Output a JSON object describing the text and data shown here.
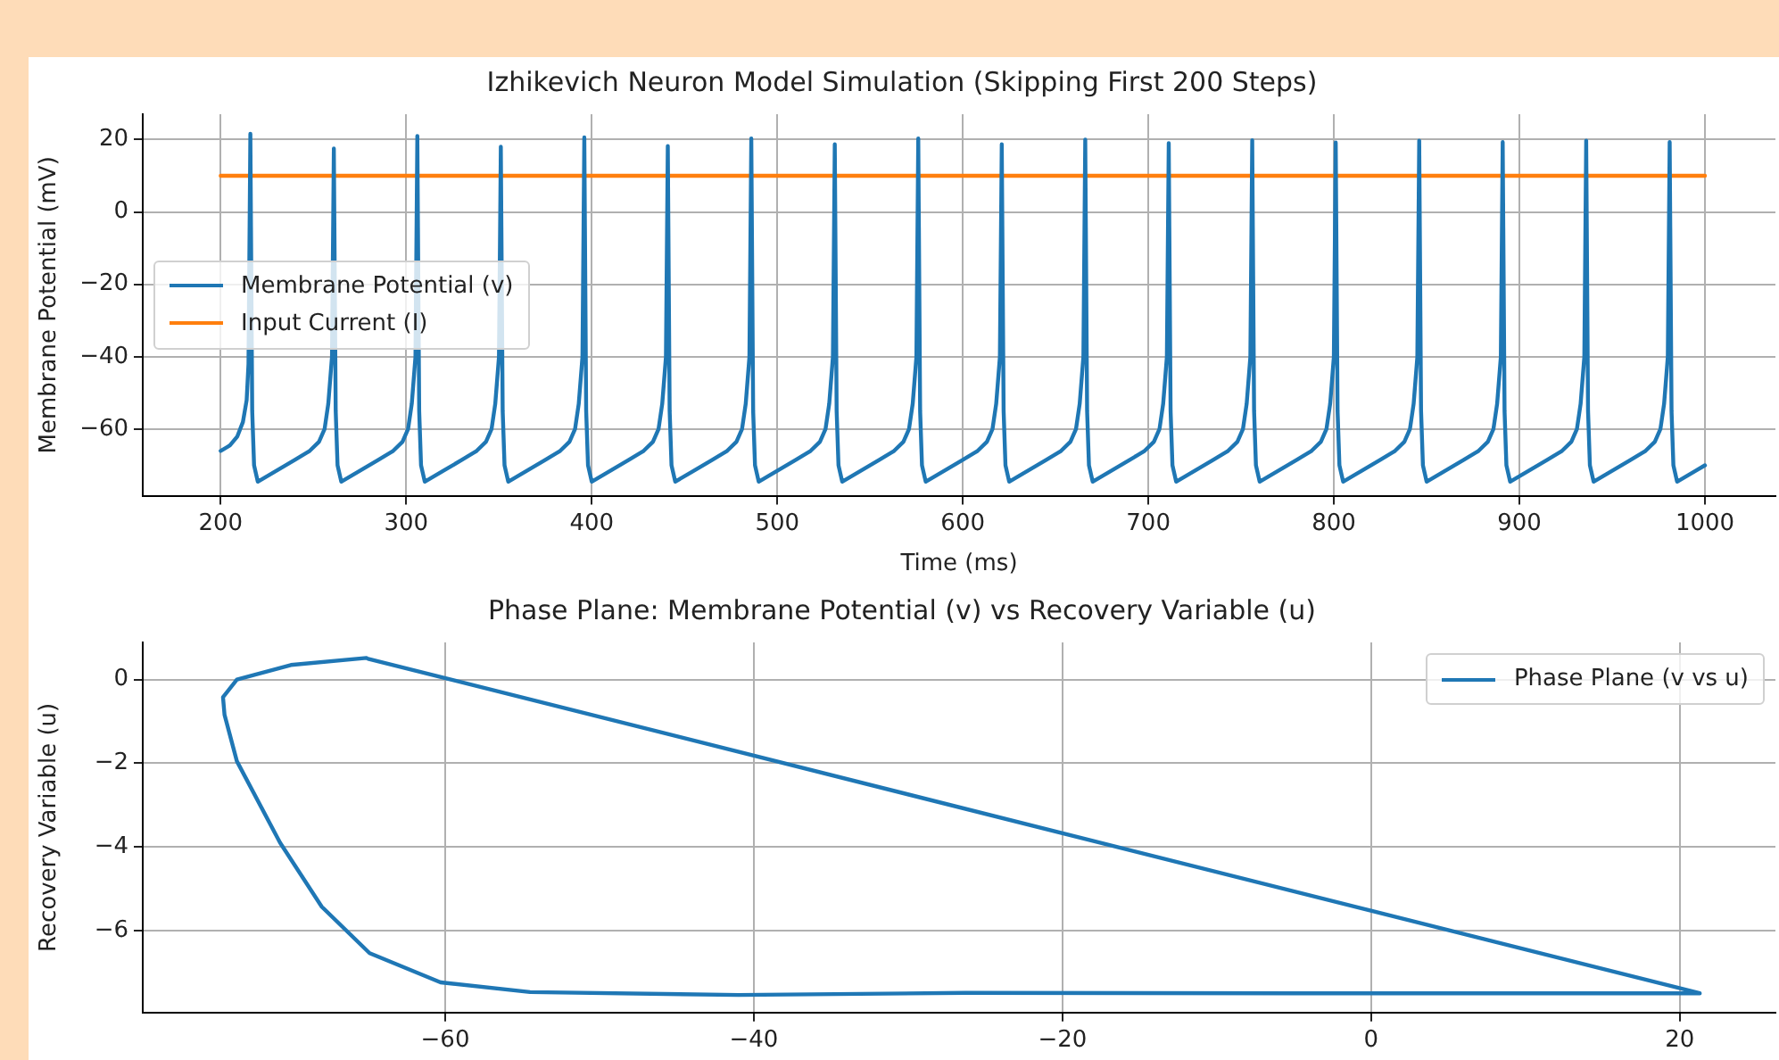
{
  "chart_data": [
    {
      "type": "line",
      "title": "Izhikevich Neuron Model Simulation (Skipping First 200 Steps)",
      "xlabel": "Time (ms)",
      "ylabel": "Membrane Potential (mV)",
      "xlim": [
        158,
        1038
      ],
      "ylim": [
        -78.4,
        27
      ],
      "xticks": [
        200,
        300,
        400,
        500,
        600,
        700,
        800,
        900,
        1000
      ],
      "yticks": [
        {
          "value": -60,
          "label": "−60"
        },
        {
          "value": -40,
          "label": "−40"
        },
        {
          "value": -20,
          "label": "−20"
        },
        {
          "value": 0,
          "label": "0"
        },
        20
      ],
      "grid": true,
      "legend": "center left",
      "series": [
        {
          "name": "Membrane Potential (v)",
          "color": "#1f77b4",
          "x": [
            200,
            205,
            209,
            212,
            214,
            215,
            216,
            217,
            218,
            220,
            230,
            240,
            248,
            253,
            256,
            258,
            260,
            261,
            262,
            263,
            265,
            275,
            285,
            293,
            298,
            301,
            303,
            305,
            306,
            307,
            308,
            310,
            320,
            330,
            338,
            343,
            346,
            348,
            350,
            351,
            352,
            353,
            355,
            365,
            375,
            383,
            388,
            391,
            393,
            395,
            396,
            397,
            398,
            400,
            410,
            420,
            428,
            433,
            436,
            438,
            440,
            441,
            442,
            443,
            445,
            455,
            465,
            473,
            478,
            481,
            483,
            485,
            486,
            487,
            488,
            490,
            500,
            510,
            518,
            523,
            526,
            528,
            530,
            531,
            532,
            533,
            535,
            545,
            555,
            563,
            568,
            571,
            573,
            575,
            576,
            577,
            578,
            580,
            590,
            600,
            608,
            613,
            616,
            618,
            620,
            621,
            622,
            623,
            625,
            635,
            645,
            653,
            658,
            661,
            663,
            665,
            666,
            667,
            668,
            670,
            680,
            690,
            698,
            703,
            706,
            708,
            710,
            711,
            712,
            713,
            715,
            725,
            735,
            743,
            748,
            751,
            753,
            755,
            756,
            757,
            758,
            760,
            770,
            780,
            788,
            793,
            796,
            798,
            800,
            801,
            802,
            803,
            805,
            815,
            825,
            833,
            838,
            841,
            843,
            845,
            846,
            847,
            848,
            850,
            860,
            870,
            878,
            883,
            886,
            888,
            890,
            891,
            892,
            893,
            895,
            905,
            915,
            923,
            928,
            931,
            933,
            935,
            936,
            937,
            938,
            940,
            950,
            960,
            968,
            973,
            976,
            978,
            980,
            981,
            982,
            983,
            985,
            995,
            1000
          ],
          "values": [
            -66,
            -64.5,
            -62,
            -58,
            -52,
            -42,
            21.6,
            -55,
            -70,
            -74.5,
            -71.5,
            -68.5,
            -66,
            -63.5,
            -60,
            -53,
            -40,
            17.5,
            -55,
            -70,
            -74.5,
            -71.5,
            -68.5,
            -66,
            -63.5,
            -60,
            -53,
            -40,
            21,
            -55,
            -70,
            -74.5,
            -71.5,
            -68.5,
            -66,
            -63.5,
            -60,
            -53,
            -40,
            18,
            -55,
            -70,
            -74.5,
            -71.5,
            -68.5,
            -66,
            -63.5,
            -60,
            -53,
            -40,
            20.6,
            -55,
            -70,
            -74.5,
            -71.5,
            -68.5,
            -66,
            -63.5,
            -60,
            -53,
            -40,
            18.2,
            -55,
            -70,
            -74.5,
            -71.5,
            -68.5,
            -66,
            -63.5,
            -60,
            -53,
            -40,
            20.3,
            -55,
            -70,
            -74.5,
            -71.5,
            -68.5,
            -66,
            -63.5,
            -60,
            -53,
            -40,
            18.7,
            -55,
            -70,
            -74.5,
            -71.5,
            -68.5,
            -66,
            -63.5,
            -60,
            -53,
            -40,
            20.3,
            -55,
            -70,
            -74.5,
            -71.5,
            -68.5,
            -66,
            -63.5,
            -60,
            -53,
            -40,
            18.7,
            -55,
            -70,
            -74.5,
            -71.5,
            -68.5,
            -66,
            -63.5,
            -60,
            -53,
            -40,
            20,
            -55,
            -70,
            -74.5,
            -71.5,
            -68.5,
            -66,
            -63.5,
            -60,
            -53,
            -40,
            19,
            -55,
            -70,
            -74.5,
            -71.5,
            -68.5,
            -66,
            -63.5,
            -60,
            -53,
            -40,
            19.8,
            -55,
            -70,
            -74.5,
            -71.5,
            -68.5,
            -66,
            -63.5,
            -60,
            -53,
            -40,
            19.2,
            -55,
            -70,
            -74.5,
            -71.5,
            -68.5,
            -66,
            -63.5,
            -60,
            -53,
            -40,
            19.7,
            -55,
            -70,
            -74.5,
            -71.5,
            -68.5,
            -66,
            -63.5,
            -60,
            -53,
            -40,
            19.3,
            -55,
            -70,
            -74.5,
            -71.5,
            -68.5,
            -66,
            -63.5,
            -60,
            -53,
            -40,
            19.7,
            -55,
            -70,
            -74.5,
            -71.5,
            -68.5,
            -66,
            -63.5,
            -60,
            -53,
            -40,
            19.3,
            -55,
            -70,
            -74.5,
            -71.5,
            -70
          ]
        },
        {
          "name": "Input Current (I)",
          "color": "#ff7f0e",
          "x": [
            200,
            1000
          ],
          "values": [
            10,
            10
          ]
        }
      ]
    },
    {
      "type": "line",
      "title": "Phase Plane: Membrane Potential (v) vs Recovery Variable (u)",
      "ylabel": "Recovery Variable (u)",
      "xlim": [
        -79.6,
        26.2
      ],
      "ylim": [
        -7.96,
        0.89
      ],
      "xticks": [
        {
          "value": -60,
          "label": "−60"
        },
        {
          "value": -40,
          "label": "−40"
        },
        {
          "value": -20,
          "label": "−20"
        },
        {
          "value": 0,
          "label": "0"
        },
        20
      ],
      "yticks": [
        {
          "value": -6,
          "label": "−6"
        },
        {
          "value": -4,
          "label": "−4"
        },
        {
          "value": -2,
          "label": "−2"
        },
        {
          "value": 0,
          "label": "0"
        }
      ],
      "grid": true,
      "legend": "top right",
      "series": [
        {
          "name": "Phase Plane (v vs u)",
          "color": "#1f77b5",
          "x": [
            -65.1,
            -70,
            -73.5,
            -74.4,
            -74.3,
            -73.5,
            -70.7,
            -68,
            -64.9,
            -60.3,
            -54.5,
            -41,
            -26.3,
            -5,
            21.3,
            -65
          ],
          "values": [
            0.52,
            0.35,
            0,
            -0.42,
            -0.84,
            -1.95,
            -3.9,
            -5.43,
            -6.54,
            -7.24,
            -7.47,
            -7.54,
            -7.49,
            -7.5,
            -7.5,
            0.5
          ]
        }
      ]
    }
  ]
}
